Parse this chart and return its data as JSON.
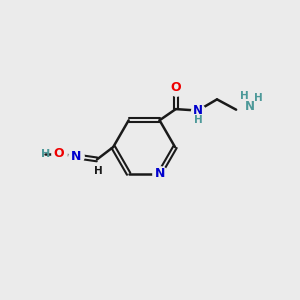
{
  "bg_color": "#ebebeb",
  "bond_color": "#1a1a1a",
  "N_color": "#0000cd",
  "O_color": "#ee0000",
  "teal_color": "#4d9999",
  "figsize": [
    3.0,
    3.0
  ],
  "dpi": 100,
  "xlim": [
    0,
    10
  ],
  "ylim": [
    0,
    10
  ]
}
